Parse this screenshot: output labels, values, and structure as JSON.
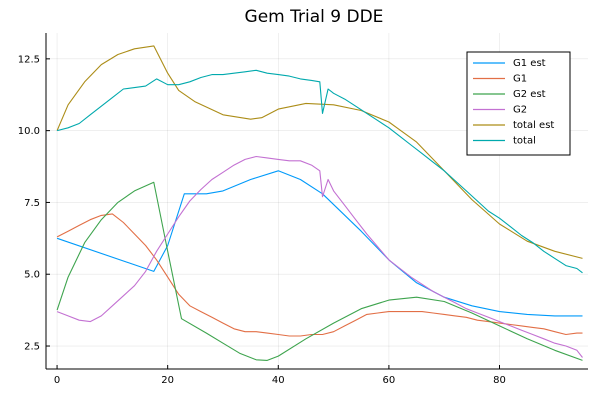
{
  "chart_data": {
    "type": "line",
    "title": "Gem Trial 9 DDE",
    "xlabel": "",
    "ylabel": "",
    "xlim": [
      -2,
      96
    ],
    "ylim": [
      1.7,
      13.4
    ],
    "xticks": [
      0,
      20,
      40,
      60,
      80
    ],
    "xtick_labels": [
      "0",
      "20",
      "40",
      "60",
      "80"
    ],
    "yticks": [
      2.5,
      5.0,
      7.5,
      10.0,
      12.5
    ],
    "ytick_labels": [
      "2.5",
      "5.0",
      "7.5",
      "10.0",
      "12.5"
    ],
    "grid": true,
    "legend_position": "top-right",
    "series": [
      {
        "name": "G1 est",
        "color": "#009AFA",
        "x": [
          0,
          17.5,
          20,
          23,
          27,
          30,
          35,
          40,
          44,
          48,
          55,
          60,
          65,
          70,
          75,
          80,
          85,
          90,
          95
        ],
        "y": [
          6.25,
          5.1,
          6.0,
          7.8,
          7.8,
          7.9,
          8.3,
          8.6,
          8.3,
          7.8,
          6.5,
          5.5,
          4.7,
          4.2,
          3.9,
          3.7,
          3.6,
          3.55,
          3.55
        ]
      },
      {
        "name": "G1",
        "color": "#E26F46",
        "x": [
          0,
          2,
          4,
          6,
          8,
          10,
          12,
          14,
          16,
          18,
          20,
          22,
          24,
          26,
          28,
          30,
          32,
          34,
          36,
          38,
          40,
          42,
          44,
          46,
          48,
          50,
          52,
          54,
          56,
          58,
          60,
          62,
          64,
          66,
          68,
          70,
          72,
          74,
          76,
          78,
          80,
          82,
          84,
          86,
          88,
          90,
          92,
          94,
          95
        ],
        "y": [
          6.3,
          6.5,
          6.7,
          6.9,
          7.05,
          7.1,
          6.8,
          6.4,
          6.0,
          5.5,
          4.9,
          4.3,
          3.9,
          3.7,
          3.5,
          3.3,
          3.1,
          3.0,
          3.0,
          2.95,
          2.9,
          2.85,
          2.85,
          2.9,
          2.9,
          3.0,
          3.2,
          3.4,
          3.6,
          3.65,
          3.7,
          3.7,
          3.7,
          3.7,
          3.65,
          3.6,
          3.55,
          3.5,
          3.4,
          3.35,
          3.3,
          3.25,
          3.2,
          3.15,
          3.1,
          3.0,
          2.9,
          2.95,
          2.95
        ]
      },
      {
        "name": "G2 est",
        "color": "#3EA44E",
        "x": [
          0,
          2,
          5,
          8,
          11,
          14,
          17.5,
          20,
          22.5,
          27,
          30,
          33,
          36,
          38,
          40,
          45,
          50,
          55,
          60,
          65,
          70,
          75,
          80,
          85,
          90,
          95
        ],
        "y": [
          3.75,
          4.9,
          6.1,
          6.9,
          7.5,
          7.9,
          8.2,
          5.8,
          3.45,
          2.95,
          2.6,
          2.25,
          2.02,
          2.0,
          2.15,
          2.75,
          3.3,
          3.8,
          4.1,
          4.2,
          4.05,
          3.65,
          3.2,
          2.75,
          2.35,
          2.0
        ]
      },
      {
        "name": "G2",
        "color": "#C371D2",
        "x": [
          0,
          2,
          4,
          6,
          8,
          10,
          12,
          14,
          16,
          18,
          20,
          22,
          24,
          26,
          28,
          30,
          32,
          34,
          36,
          38,
          40,
          42,
          44,
          46,
          47.5,
          48,
          49,
          50,
          52,
          54,
          56,
          58,
          60,
          62,
          64,
          66,
          68,
          70,
          72,
          74,
          76,
          78,
          80,
          82,
          84,
          86,
          88,
          90,
          92,
          94,
          95
        ],
        "y": [
          3.7,
          3.55,
          3.4,
          3.35,
          3.55,
          3.9,
          4.25,
          4.6,
          5.1,
          5.8,
          6.4,
          7.0,
          7.55,
          7.95,
          8.3,
          8.55,
          8.8,
          9.0,
          9.1,
          9.05,
          9.0,
          8.95,
          8.95,
          8.8,
          8.6,
          7.7,
          8.3,
          7.9,
          7.4,
          6.9,
          6.4,
          5.95,
          5.5,
          5.2,
          4.9,
          4.65,
          4.4,
          4.2,
          4.0,
          3.8,
          3.65,
          3.5,
          3.35,
          3.2,
          3.05,
          2.9,
          2.75,
          2.6,
          2.5,
          2.35,
          2.1
        ]
      },
      {
        "name": "total est",
        "color": "#AC8D18",
        "x": [
          0,
          2,
          5,
          8,
          11,
          14,
          17.5,
          20,
          22,
          25,
          30,
          35,
          37,
          40,
          45,
          50,
          55,
          60,
          65,
          70,
          75,
          80,
          85,
          90,
          95
        ],
        "y": [
          10.0,
          10.9,
          11.7,
          12.3,
          12.65,
          12.85,
          12.95,
          12.0,
          11.4,
          11.0,
          10.55,
          10.4,
          10.45,
          10.75,
          10.95,
          10.9,
          10.7,
          10.3,
          9.6,
          8.6,
          7.6,
          6.75,
          6.15,
          5.8,
          5.55
        ]
      },
      {
        "name": "total",
        "color": "#00A9AD",
        "x": [
          0,
          2,
          4,
          6,
          8,
          10,
          12,
          14,
          16,
          18,
          20,
          22,
          24,
          26,
          28,
          30,
          32,
          34,
          36,
          38,
          40,
          42,
          44,
          46,
          47.5,
          48,
          49,
          50,
          52,
          54,
          56,
          58,
          60,
          62,
          64,
          66,
          68,
          70,
          72,
          74,
          76,
          78,
          80,
          82,
          84,
          86,
          88,
          90,
          92,
          94,
          95
        ],
        "y": [
          10.0,
          10.1,
          10.25,
          10.55,
          10.85,
          11.15,
          11.45,
          11.5,
          11.55,
          11.8,
          11.6,
          11.6,
          11.7,
          11.85,
          11.95,
          11.95,
          12.0,
          12.05,
          12.1,
          12.0,
          11.95,
          11.9,
          11.8,
          11.75,
          11.7,
          10.6,
          11.45,
          11.3,
          11.1,
          10.85,
          10.6,
          10.35,
          10.1,
          9.8,
          9.5,
          9.2,
          8.9,
          8.6,
          8.25,
          7.9,
          7.55,
          7.2,
          6.95,
          6.65,
          6.35,
          6.1,
          5.8,
          5.55,
          5.3,
          5.2,
          5.05
        ]
      }
    ]
  }
}
